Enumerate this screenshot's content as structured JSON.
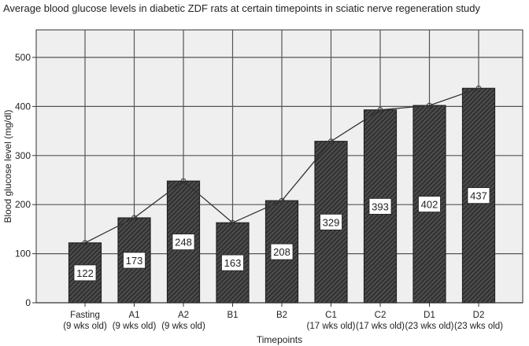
{
  "chart_data": {
    "type": "bar",
    "title": "Average blood glucose levels in diabetic ZDF rats at certain timepoints in sciatic nerve regeneration study",
    "xlabel": "Timepoints",
    "ylabel": "Blood glucose level (mg/dl)",
    "ylim": [
      0,
      550
    ],
    "yticks": [
      0,
      100,
      200,
      300,
      400,
      500
    ],
    "grid": true,
    "categories": [
      {
        "name": "Fasting",
        "sub": "(9 wks old)"
      },
      {
        "name": "A1",
        "sub": "(9 wks old)"
      },
      {
        "name": "A2",
        "sub": "(9 wks old)"
      },
      {
        "name": "B1",
        "sub": ""
      },
      {
        "name": "B2",
        "sub": ""
      },
      {
        "name": "C1",
        "sub": "(17 wks old)"
      },
      {
        "name": "C2",
        "sub": "(17 wks old)"
      },
      {
        "name": "D1",
        "sub": "(23 wks old)"
      },
      {
        "name": "D2",
        "sub": "(23 wks old)"
      }
    ],
    "values": [
      122,
      173,
      248,
      163,
      208,
      329,
      393,
      402,
      437
    ],
    "overlay": "line connecting bar values",
    "colors": {
      "bar": "#3a3a3a",
      "plot_bg": "#efefef",
      "grid": "#555555"
    }
  }
}
